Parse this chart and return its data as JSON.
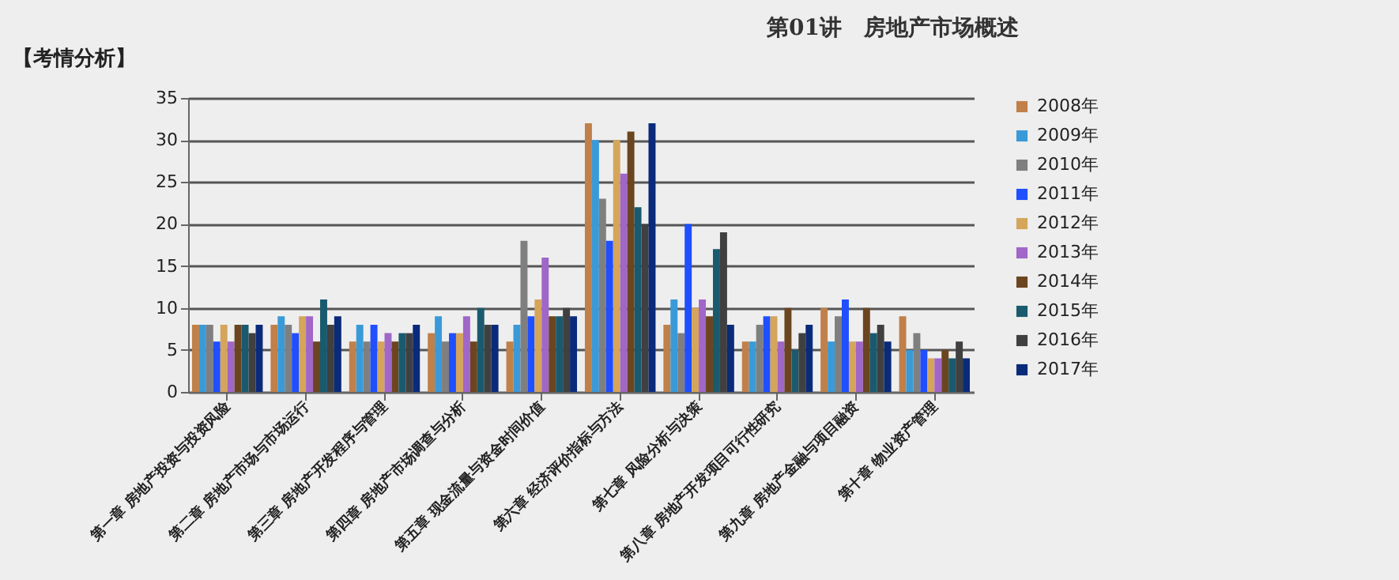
{
  "chart_data": {
    "type": "bar",
    "title": "第01讲　房地产市场概述",
    "subtitle": "【考情分析】",
    "categories": [
      "第一章 房地产投资与投资风险",
      "第二章 房地产市场与市场运行",
      "第三章 房地产开发程序与管理",
      "第四章 房地产市场调查与分析",
      "第五章 现金流量与资金时间价值",
      "第六章 经济评价指标与方法",
      "第七章 风险分析与决策",
      "第八章 房地产开发项目可行性研究",
      "第九章 房地产金融与项目融资",
      "第十章 物业资产管理"
    ],
    "series": [
      {
        "name": "2008年",
        "color": "#c0804a",
        "values": [
          8,
          8,
          6,
          7,
          6,
          32,
          8,
          6,
          10,
          9
        ]
      },
      {
        "name": "2009年",
        "color": "#3a9ad8",
        "values": [
          8,
          9,
          8,
          9,
          8,
          30,
          11,
          6,
          6,
          5
        ]
      },
      {
        "name": "2010年",
        "color": "#7f7f7f",
        "values": [
          8,
          8,
          6,
          6,
          18,
          23,
          7,
          8,
          9,
          7
        ]
      },
      {
        "name": "2011年",
        "color": "#1f4fff",
        "values": [
          6,
          7,
          8,
          7,
          9,
          18,
          20,
          9,
          11,
          5
        ]
      },
      {
        "name": "2012年",
        "color": "#d4a55a",
        "values": [
          8,
          9,
          6,
          7,
          11,
          30,
          10,
          9,
          6,
          4
        ]
      },
      {
        "name": "2013年",
        "color": "#a066c8",
        "values": [
          6,
          9,
          7,
          9,
          16,
          26,
          11,
          6,
          6,
          4
        ]
      },
      {
        "name": "2014年",
        "color": "#6b4520",
        "values": [
          8,
          6,
          6,
          6,
          9,
          31,
          9,
          10,
          10,
          5
        ]
      },
      {
        "name": "2015年",
        "color": "#1a5a6e",
        "values": [
          8,
          11,
          7,
          10,
          9,
          22,
          17,
          5,
          7,
          4
        ]
      },
      {
        "name": "2016年",
        "color": "#404040",
        "values": [
          7,
          8,
          7,
          8,
          10,
          20,
          19,
          7,
          8,
          6
        ]
      },
      {
        "name": "2017年",
        "color": "#0a2a7a",
        "values": [
          8,
          9,
          8,
          8,
          9,
          32,
          8,
          8,
          6,
          4
        ]
      }
    ],
    "ylim": [
      0,
      35
    ],
    "yticks": [
      0,
      5,
      10,
      15,
      20,
      25,
      30,
      35
    ],
    "grid": "y",
    "legend": "right"
  }
}
